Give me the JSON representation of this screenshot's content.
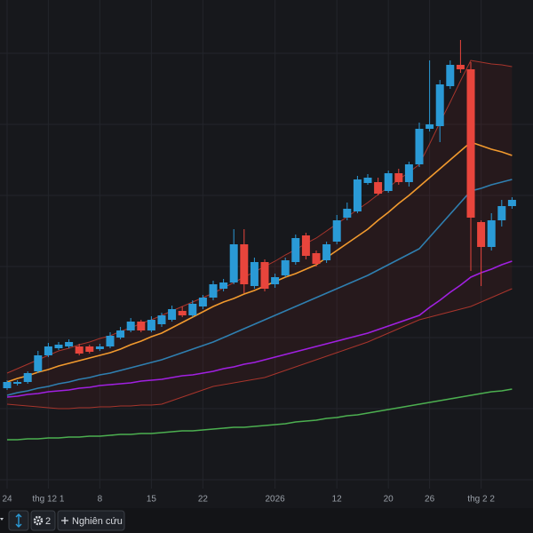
{
  "chart_data": {
    "type": "candlestick",
    "categories": [
      "24",
      null,
      null,
      null,
      "thg 12 1",
      null,
      null,
      null,
      null,
      "8",
      null,
      null,
      null,
      null,
      "15",
      null,
      null,
      null,
      null,
      "22",
      null,
      null,
      null,
      null,
      null,
      null,
      "2026",
      null,
      null,
      null,
      null,
      null,
      "12",
      null,
      null,
      null,
      null,
      "20",
      null,
      null,
      null,
      "26",
      null,
      null,
      null,
      null,
      "thg 2 2",
      null,
      null,
      null
    ],
    "open": [
      163,
      168,
      170,
      182,
      200,
      208,
      210,
      210,
      210,
      207,
      210,
      220,
      228,
      238,
      228,
      235,
      240,
      250,
      245,
      255,
      265,
      275,
      282,
      325,
      278,
      305,
      280,
      290,
      305,
      335,
      315,
      307,
      328,
      355,
      362,
      394,
      395,
      385,
      405,
      395,
      415,
      455,
      458,
      503,
      527,
      522,
      350,
      322,
      352,
      368
    ],
    "high": [
      172,
      172,
      182,
      205,
      214,
      215,
      218,
      213,
      212,
      213,
      226,
      232,
      242,
      240,
      244,
      248,
      256,
      255,
      262,
      268,
      284,
      286,
      342,
      342,
      310,
      308,
      292,
      310,
      336,
      338,
      318,
      328,
      358,
      372,
      402,
      404,
      400,
      408,
      410,
      418,
      462,
      532,
      510,
      532,
      555,
      530,
      352,
      360,
      375,
      378
    ],
    "low": [
      161,
      166,
      168,
      180,
      198,
      206,
      208,
      200,
      202,
      205,
      208,
      218,
      226,
      226,
      226,
      232,
      238,
      243,
      243,
      252,
      262,
      272,
      280,
      270,
      275,
      272,
      276,
      288,
      302,
      308,
      300,
      304,
      325,
      352,
      360,
      392,
      380,
      383,
      392,
      390,
      412,
      452,
      440,
      500,
      518,
      295,
      278,
      318,
      345,
      365
    ],
    "close": [
      170,
      170,
      180,
      200,
      210,
      212,
      215,
      202,
      204,
      210,
      222,
      228,
      238,
      228,
      240,
      245,
      252,
      245,
      258,
      265,
      280,
      282,
      325,
      280,
      305,
      275,
      288,
      307,
      332,
      312,
      303,
      325,
      352,
      365,
      398,
      400,
      382,
      405,
      395,
      415,
      455,
      460,
      505,
      527,
      522,
      355,
      322,
      352,
      368,
      375
    ],
    "up_color": "#2a9ad6",
    "down_color": "#e8453c",
    "lines": [
      {
        "color": "#f29a2e",
        "values": [
          170,
          174,
          177,
          181,
          184,
          188,
          191,
          194,
          197,
          200,
          203,
          207,
          212,
          216,
          221,
          225,
          231,
          237,
          243,
          249,
          255,
          260,
          264,
          269,
          273,
          278,
          283,
          288,
          292,
          297,
          302,
          310,
          318,
          326,
          334,
          342,
          352,
          361,
          371,
          380,
          390,
          400,
          410,
          420,
          430,
          440,
          436,
          432,
          429,
          425
        ]
      },
      {
        "color": "#2f7fb0",
        "values": [
          155,
          158,
          160,
          163,
          165,
          168,
          170,
          173,
          175,
          178,
          180,
          183,
          186,
          189,
          192,
          195,
          199,
          203,
          207,
          211,
          215,
          220,
          225,
          230,
          235,
          240,
          245,
          250,
          255,
          260,
          265,
          270,
          275,
          280,
          285,
          290,
          296,
          302,
          308,
          314,
          320,
          333,
          346,
          359,
          372,
          385,
          388,
          392,
          395,
          398
        ]
      },
      {
        "color": "#a020e0",
        "values": [
          153,
          154,
          156,
          157,
          159,
          160,
          161,
          163,
          164,
          166,
          167,
          168,
          169,
          171,
          172,
          173,
          175,
          177,
          178,
          180,
          182,
          185,
          187,
          190,
          192,
          195,
          198,
          201,
          204,
          207,
          210,
          213,
          216,
          219,
          222,
          225,
          229,
          233,
          237,
          241,
          245,
          254,
          262,
          271,
          279,
          288,
          293,
          297,
          302,
          306
        ]
      },
      {
        "color": "#4caf50",
        "values": [
          105,
          105,
          106,
          106,
          107,
          107,
          108,
          108,
          109,
          109,
          110,
          111,
          111,
          112,
          112,
          113,
          114,
          115,
          115,
          116,
          117,
          118,
          119,
          119,
          120,
          121,
          122,
          123,
          125,
          126,
          127,
          129,
          130,
          132,
          133,
          135,
          137,
          139,
          141,
          143,
          145,
          147,
          149,
          151,
          153,
          155,
          157,
          159,
          160,
          162
        ]
      },
      {
        "color": "#a8352c",
        "values": [
          180,
          185,
          190,
          195,
          200,
          205,
          208,
          212,
          215,
          219,
          222,
          227,
          231,
          236,
          240,
          245,
          250,
          255,
          260,
          265,
          270,
          276,
          282,
          288,
          294,
          300,
          306,
          313,
          319,
          326,
          332,
          340,
          348,
          356,
          364,
          372,
          381,
          389,
          398,
          406,
          415,
          438,
          462,
          485,
          509,
          532,
          530,
          528,
          527,
          525
        ]
      },
      {
        "color": "#a8352c",
        "values": [
          145,
          144,
          143,
          142,
          141,
          140,
          140,
          141,
          141,
          142,
          142,
          143,
          143,
          144,
          144,
          145,
          149,
          153,
          157,
          161,
          165,
          167,
          169,
          171,
          173,
          175,
          179,
          183,
          187,
          191,
          195,
          199,
          203,
          207,
          211,
          215,
          220,
          225,
          230,
          235,
          240,
          243,
          246,
          249,
          252,
          255,
          260,
          265,
          270,
          275
        ]
      }
    ],
    "ylim": [
      0,
      600
    ]
  },
  "toolbar": {
    "settings_count": 2,
    "studies_button": "Nghiên cứu"
  }
}
